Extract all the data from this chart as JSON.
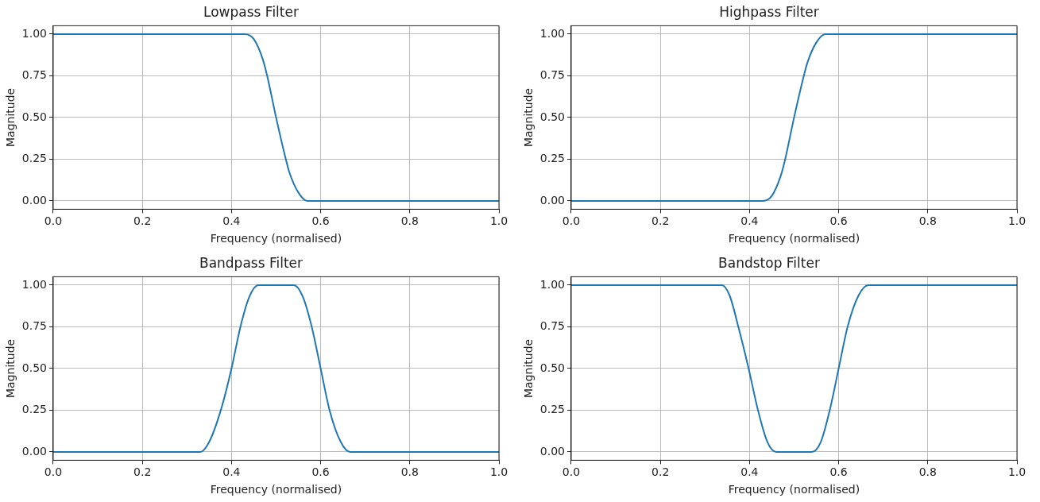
{
  "chart_data": [
    {
      "type": "line",
      "title": "Lowpass Filter",
      "xlabel": "Frequency (normalised)",
      "ylabel": "Magnitude",
      "xlim": [
        0,
        1
      ],
      "xticks": [
        {
          "value": 0,
          "label": "0.0"
        },
        {
          "value": 0.2,
          "label": "0.2"
        },
        {
          "value": 0.4,
          "label": "0.4"
        },
        {
          "value": 0.6,
          "label": "0.6"
        },
        {
          "value": 0.8,
          "label": "0.8"
        },
        {
          "value": 1,
          "label": "1.0"
        }
      ],
      "ylim": [
        -0.05,
        1.05
      ],
      "yticks": [
        {
          "value": 0,
          "label": "0.00"
        },
        {
          "value": 0.25,
          "label": "0.25"
        },
        {
          "value": 0.5,
          "label": "0.50"
        },
        {
          "value": 0.75,
          "label": "0.75"
        },
        {
          "value": 1,
          "label": "1.00"
        }
      ],
      "grid": true,
      "marker": "none",
      "line_style": "solid",
      "series": [
        {
          "color": "#1f77b4",
          "x": [
            0,
            0.3,
            0.43,
            0.45,
            0.47,
            0.48,
            0.5,
            0.52,
            0.53,
            0.55,
            0.57,
            1
          ],
          "values": [
            1,
            1,
            1,
            0.97,
            0.85,
            0.75,
            0.5,
            0.27,
            0.17,
            0.05,
            0,
            0
          ]
        }
      ]
    },
    {
      "type": "line",
      "title": "Highpass Filter",
      "xlabel": "Frequency (normalised)",
      "ylabel": "Magnitude",
      "xlim": [
        0,
        1
      ],
      "xticks": [
        {
          "value": 0,
          "label": "0.0"
        },
        {
          "value": 0.2,
          "label": "0.2"
        },
        {
          "value": 0.4,
          "label": "0.4"
        },
        {
          "value": 0.6,
          "label": "0.6"
        },
        {
          "value": 0.8,
          "label": "0.8"
        },
        {
          "value": 1,
          "label": "1.0"
        }
      ],
      "ylim": [
        -0.05,
        1.05
      ],
      "yticks": [
        {
          "value": 0,
          "label": "0.00"
        },
        {
          "value": 0.25,
          "label": "0.25"
        },
        {
          "value": 0.5,
          "label": "0.50"
        },
        {
          "value": 0.75,
          "label": "0.75"
        },
        {
          "value": 1,
          "label": "1.00"
        }
      ],
      "grid": true,
      "marker": "none",
      "line_style": "solid",
      "series": [
        {
          "color": "#1f77b4",
          "x": [
            0,
            0.43,
            0.45,
            0.47,
            0.48,
            0.5,
            0.52,
            0.53,
            0.55,
            0.57,
            0.7,
            1
          ],
          "values": [
            0,
            0,
            0.03,
            0.15,
            0.25,
            0.5,
            0.73,
            0.83,
            0.95,
            1,
            1,
            1
          ]
        }
      ]
    },
    {
      "type": "line",
      "title": "Bandpass Filter",
      "xlabel": "Frequency (normalised)",
      "ylabel": "Magnitude",
      "xlim": [
        0,
        1
      ],
      "xticks": [
        {
          "value": 0,
          "label": "0.0"
        },
        {
          "value": 0.2,
          "label": "0.2"
        },
        {
          "value": 0.4,
          "label": "0.4"
        },
        {
          "value": 0.6,
          "label": "0.6"
        },
        {
          "value": 0.8,
          "label": "0.8"
        },
        {
          "value": 1,
          "label": "1.0"
        }
      ],
      "ylim": [
        -0.05,
        1.05
      ],
      "yticks": [
        {
          "value": 0,
          "label": "0.00"
        },
        {
          "value": 0.25,
          "label": "0.25"
        },
        {
          "value": 0.5,
          "label": "0.50"
        },
        {
          "value": 0.75,
          "label": "0.75"
        },
        {
          "value": 1,
          "label": "1.00"
        }
      ],
      "grid": true,
      "marker": "none",
      "line_style": "solid",
      "series": [
        {
          "color": "#1f77b4",
          "x": [
            0,
            0.33,
            0.35,
            0.376,
            0.4,
            0.42,
            0.44,
            0.46,
            0.5,
            0.54,
            0.56,
            0.58,
            0.6,
            0.62,
            0.645,
            0.666,
            1
          ],
          "values": [
            0,
            0,
            0.06,
            0.25,
            0.5,
            0.75,
            0.93,
            1,
            1,
            1,
            0.93,
            0.75,
            0.5,
            0.25,
            0.06,
            0,
            0
          ]
        }
      ]
    },
    {
      "type": "line",
      "title": "Bandstop Filter",
      "xlabel": "Frequency (normalised)",
      "ylabel": "Magnitude",
      "xlim": [
        0,
        1
      ],
      "xticks": [
        {
          "value": 0,
          "label": "0.0"
        },
        {
          "value": 0.2,
          "label": "0.2"
        },
        {
          "value": 0.4,
          "label": "0.4"
        },
        {
          "value": 0.6,
          "label": "0.6"
        },
        {
          "value": 0.8,
          "label": "0.8"
        },
        {
          "value": 1,
          "label": "1.0"
        }
      ],
      "ylim": [
        -0.05,
        1.05
      ],
      "yticks": [
        {
          "value": 0,
          "label": "0.00"
        },
        {
          "value": 0.25,
          "label": "0.25"
        },
        {
          "value": 0.5,
          "label": "0.50"
        },
        {
          "value": 0.75,
          "label": "0.75"
        },
        {
          "value": 1,
          "label": "1.00"
        }
      ],
      "grid": true,
      "marker": "none",
      "line_style": "solid",
      "series": [
        {
          "color": "#1f77b4",
          "x": [
            0,
            0.338,
            0.355,
            0.375,
            0.398,
            0.419,
            0.44,
            0.46,
            0.5,
            0.54,
            0.56,
            0.58,
            0.6,
            0.62,
            0.645,
            0.667,
            1
          ],
          "values": [
            1,
            1,
            0.94,
            0.75,
            0.5,
            0.25,
            0.06,
            0,
            0,
            0,
            0.06,
            0.25,
            0.5,
            0.75,
            0.94,
            1,
            1
          ]
        }
      ]
    }
  ]
}
